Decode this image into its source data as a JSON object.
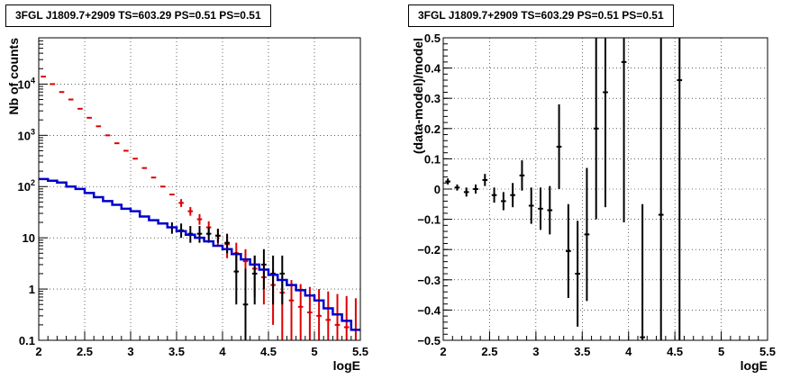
{
  "chart_data": [
    {
      "type": "scatter",
      "title": "3FGL J1809.7+2909 TS=603.29 PS=0.51 PS=0.51",
      "xlabel": "logE",
      "ylabel": "Nb of counts",
      "xlim": [
        2,
        5.5
      ],
      "ylim": [
        0.1,
        80000
      ],
      "yscale": "log",
      "grid": true,
      "x_ticks": [
        "2",
        "2.5",
        "3",
        "3.5",
        "4",
        "4.5",
        "5",
        "5.5"
      ],
      "y_ticks": [
        "0.1",
        "1",
        "10",
        "10²",
        "10³",
        "10⁴"
      ],
      "x": [
        2.05,
        2.15,
        2.25,
        2.35,
        2.45,
        2.55,
        2.65,
        2.75,
        2.85,
        2.95,
        3.05,
        3.15,
        3.25,
        3.35,
        3.45,
        3.55,
        3.65,
        3.75,
        3.85,
        3.95,
        4.05,
        4.15,
        4.25,
        4.35,
        4.45,
        4.55,
        4.65,
        4.75,
        4.85,
        4.95,
        5.05,
        5.15,
        5.25,
        5.35,
        5.45
      ],
      "series": [
        {
          "color": "#dd0000",
          "y": [
            14000,
            10000,
            7000,
            5000,
            3300,
            2200,
            1500,
            1000,
            700,
            500,
            350,
            230,
            150,
            100,
            70,
            48,
            33,
            23,
            16,
            11,
            7.5,
            5,
            3.5,
            2.5,
            1.7,
            1.2,
            0.85,
            0.6,
            0.45,
            0.35,
            0.3,
            0.25,
            0.2,
            0.18,
            0.16
          ],
          "err_lo": [
            0,
            0,
            0,
            0,
            0,
            0,
            0,
            0,
            0,
            0,
            0,
            0,
            0,
            0,
            0,
            8,
            6,
            5,
            5,
            4,
            3.5,
            3,
            2,
            1.8,
            1.2,
            1,
            0.8,
            0.55,
            0.42,
            0.33,
            0.28,
            0.23,
            0.18,
            0.17,
            0.15
          ],
          "err_hi": [
            0,
            0,
            0,
            0,
            0,
            0,
            0,
            0,
            0,
            0,
            0,
            0,
            0,
            0,
            0,
            9,
            7,
            6,
            5,
            4,
            3.5,
            3,
            2.5,
            2,
            1.5,
            1.2,
            1,
            0.9,
            0.8,
            0.75,
            0.7,
            0.65,
            0.6,
            0.55,
            0.5
          ]
        },
        {
          "color": "#000000",
          "y": [
            null,
            null,
            null,
            null,
            null,
            null,
            null,
            null,
            null,
            null,
            null,
            null,
            null,
            null,
            16,
            14,
            12,
            12,
            12,
            11,
            8,
            2.2,
            0.5,
            2,
            3,
            2,
            2,
            null,
            null,
            null,
            null,
            null,
            null,
            null,
            null
          ],
          "err_lo": [
            0,
            0,
            0,
            0,
            0,
            0,
            0,
            0,
            0,
            0,
            0,
            0,
            0,
            0,
            4,
            4,
            4,
            4,
            4,
            3,
            3,
            1.7,
            0.45,
            1.5,
            2,
            1.5,
            1.5,
            0,
            0,
            0,
            0,
            0,
            0,
            0,
            0
          ],
          "err_hi": [
            0,
            0,
            0,
            0,
            0,
            0,
            0,
            0,
            0,
            0,
            0,
            0,
            0,
            0,
            4,
            5,
            5,
            5,
            4,
            4,
            4,
            3,
            2,
            2.5,
            3,
            2.5,
            2.5,
            0,
            0,
            0,
            0,
            0,
            0,
            0,
            0
          ]
        },
        {
          "color": "#0000cc",
          "step": true,
          "y": [
            140,
            130,
            120,
            100,
            90,
            75,
            62,
            52,
            44,
            37,
            33,
            26,
            22,
            19,
            16,
            13.5,
            11.5,
            10,
            8.5,
            7,
            6,
            4.8,
            3.8,
            3,
            2.4,
            1.9,
            1.5,
            1.2,
            0.95,
            0.75,
            0.6,
            0.42,
            0.32,
            0.24,
            0.16
          ]
        }
      ]
    },
    {
      "type": "scatter",
      "title": "3FGL J1809.7+2909 TS=603.29 PS=0.51 PS=0.51",
      "xlabel": "logE",
      "ylabel": "(data-model)/model",
      "xlim": [
        2,
        5.5
      ],
      "ylim": [
        -0.5,
        0.5
      ],
      "grid": true,
      "x_ticks": [
        "2",
        "2.5",
        "3",
        "3.5",
        "4",
        "4.5",
        "5",
        "5.5"
      ],
      "y_ticks": [
        "-0.5",
        "-0.4",
        "-0.3",
        "-0.2",
        "-0.1",
        "0",
        "0.1",
        "0.2",
        "0.3",
        "0.4",
        "0.5"
      ],
      "points": [
        {
          "x": 2.05,
          "y": 0.025,
          "lo": 0.01,
          "hi": 0.01
        },
        {
          "x": 2.15,
          "y": 0.005,
          "lo": 0.01,
          "hi": 0.01
        },
        {
          "x": 2.25,
          "y": -0.01,
          "lo": 0.015,
          "hi": 0.015
        },
        {
          "x": 2.35,
          "y": 0.0,
          "lo": 0.015,
          "hi": 0.015
        },
        {
          "x": 2.45,
          "y": 0.03,
          "lo": 0.02,
          "hi": 0.02
        },
        {
          "x": 2.55,
          "y": -0.02,
          "lo": 0.025,
          "hi": 0.025
        },
        {
          "x": 2.65,
          "y": -0.04,
          "lo": 0.03,
          "hi": 0.03
        },
        {
          "x": 2.75,
          "y": -0.02,
          "lo": 0.04,
          "hi": 0.04
        },
        {
          "x": 2.85,
          "y": 0.045,
          "lo": 0.05,
          "hi": 0.05
        },
        {
          "x": 2.95,
          "y": -0.055,
          "lo": 0.06,
          "hi": 0.06
        },
        {
          "x": 3.05,
          "y": -0.065,
          "lo": 0.07,
          "hi": 0.07
        },
        {
          "x": 3.15,
          "y": -0.07,
          "lo": 0.08,
          "hi": 0.08
        },
        {
          "x": 3.25,
          "y": 0.14,
          "lo": 0.14,
          "hi": 0.14
        },
        {
          "x": 3.35,
          "y": -0.205,
          "lo": 0.155,
          "hi": 0.155
        },
        {
          "x": 3.45,
          "y": -0.28,
          "lo": 0.175,
          "hi": 0.175
        },
        {
          "x": 3.55,
          "y": -0.15,
          "lo": 0.22,
          "hi": 0.22
        },
        {
          "x": 3.65,
          "y": 0.2,
          "lo": 0.3,
          "hi": 0.3
        },
        {
          "x": 3.75,
          "y": 0.32,
          "lo": 0.38,
          "hi": 0.38
        },
        {
          "x": 3.95,
          "y": 0.42,
          "lo": 0.53,
          "hi": 0.53
        },
        {
          "x": 4.15,
          "y": -0.49,
          "lo": 0.1,
          "hi": 0.44
        },
        {
          "x": 4.35,
          "y": -0.085,
          "lo": 0.9,
          "hi": 0.9
        },
        {
          "x": 4.55,
          "y": 0.36,
          "lo": 0.9,
          "hi": 0.9
        }
      ]
    }
  ]
}
